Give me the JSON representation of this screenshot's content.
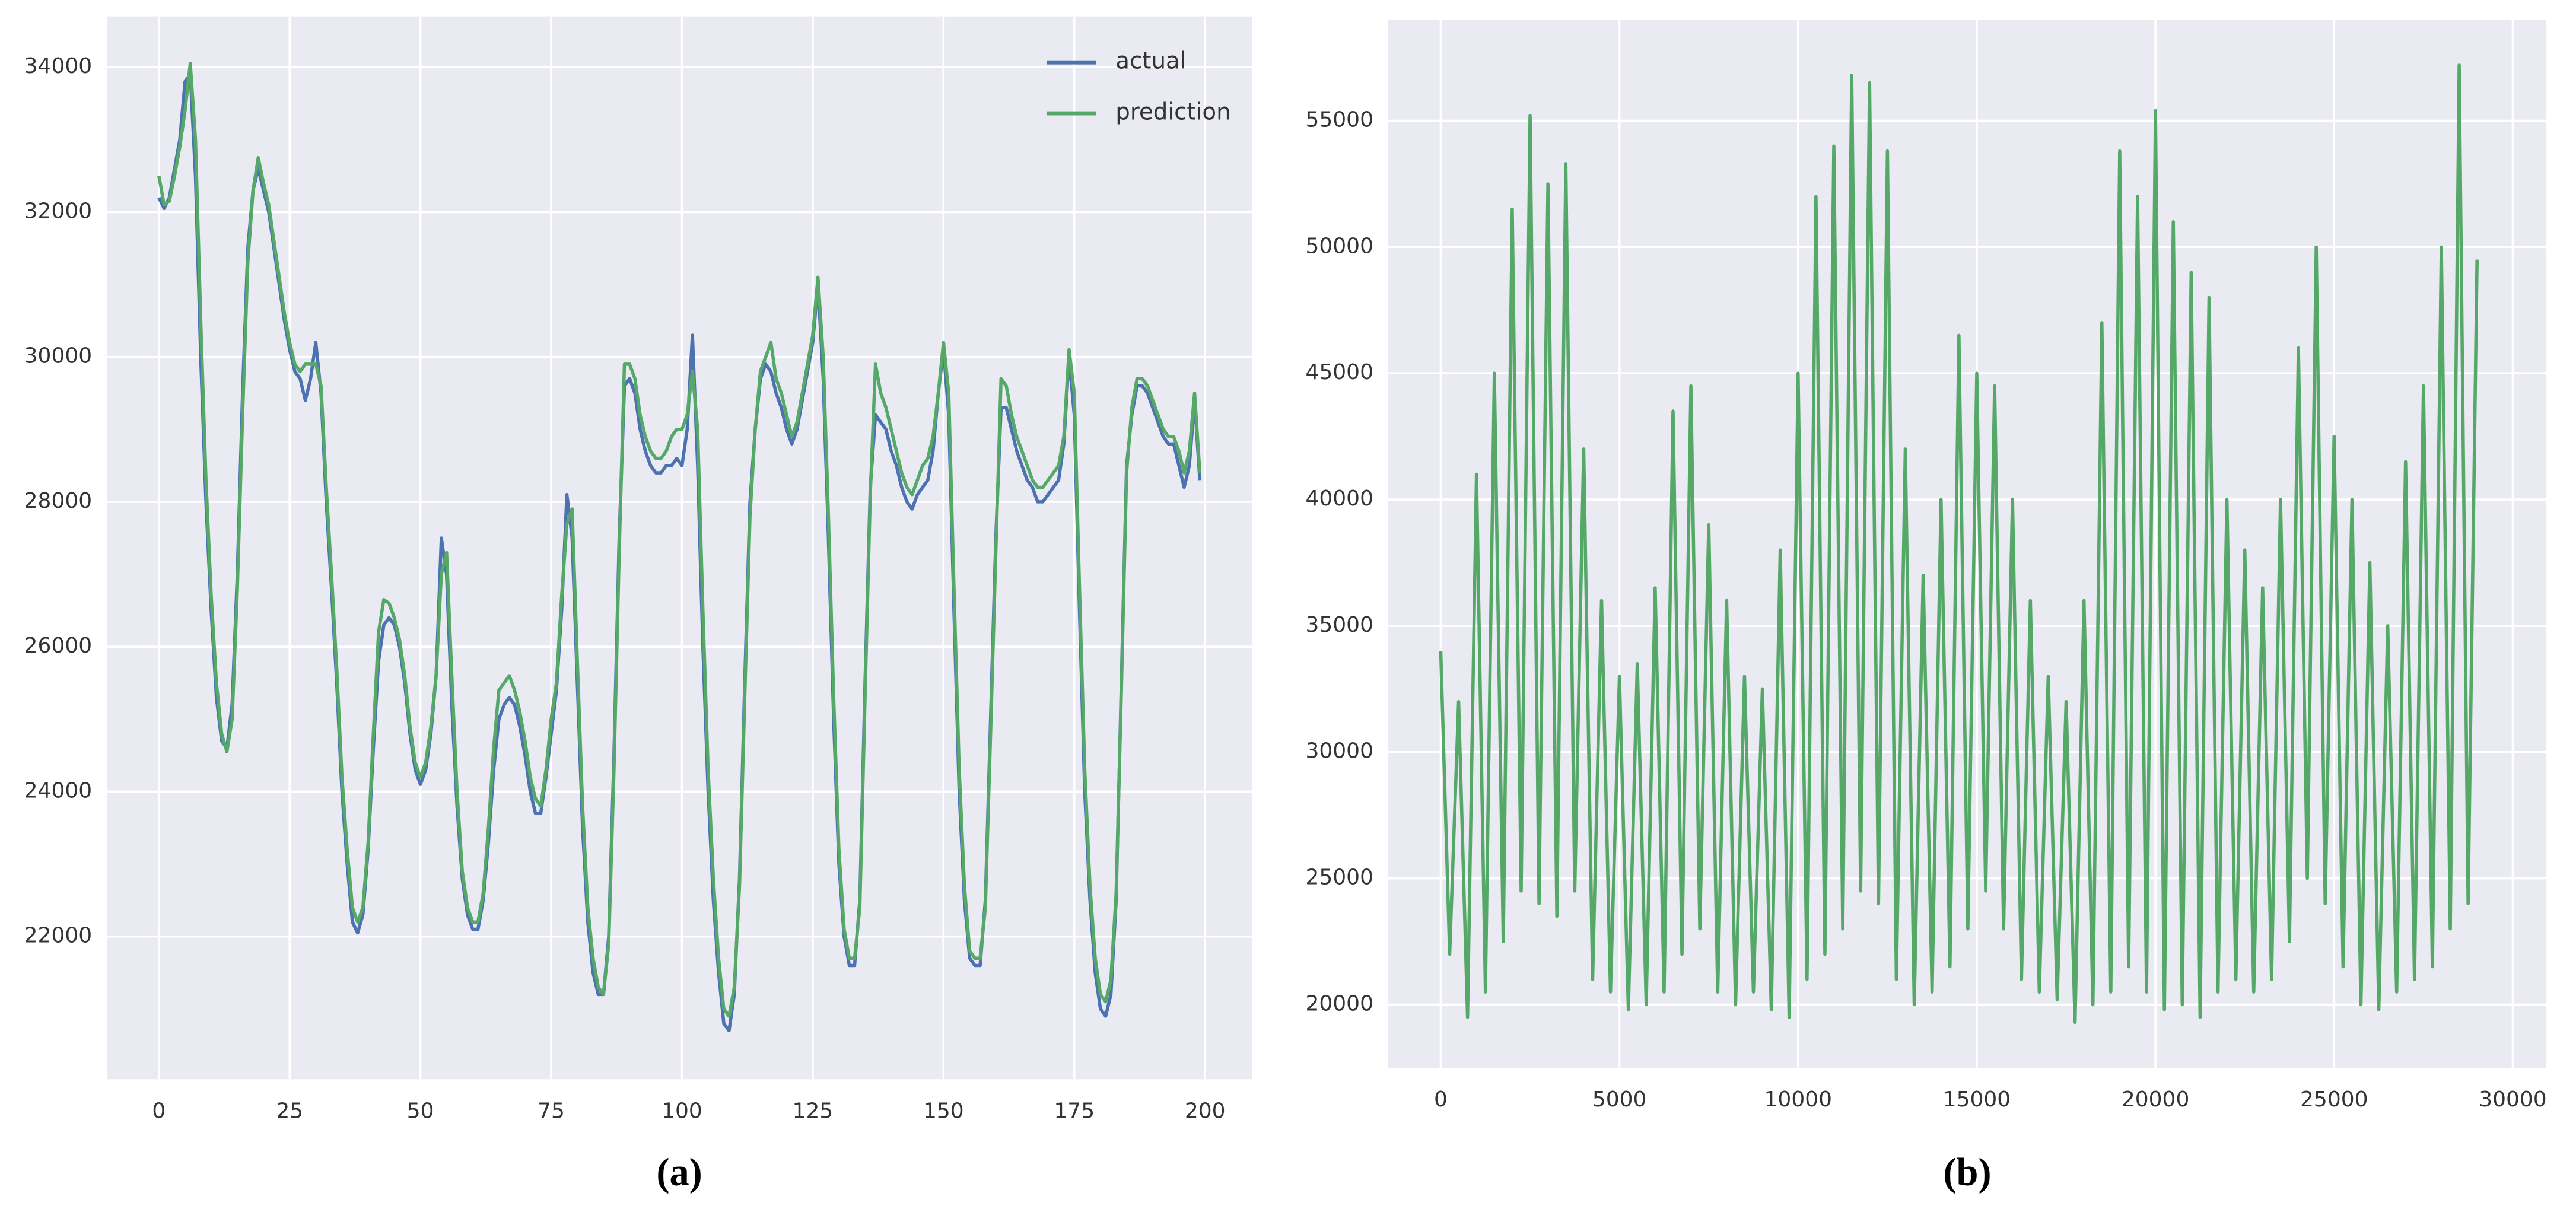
{
  "chart_data": [
    {
      "type": "line",
      "caption": "(a)",
      "legend": "upper right",
      "grid": true,
      "xlim": [
        -9.95,
        208.95
      ],
      "xticks": [
        0,
        25,
        50,
        75,
        100,
        125,
        150,
        175,
        200
      ],
      "ylim": [
        20030,
        34700
      ],
      "yticks": [
        22000,
        24000,
        26000,
        28000,
        30000,
        32000,
        34000
      ],
      "x": [
        0,
        1,
        2,
        3,
        4,
        5,
        6,
        7,
        8,
        9,
        10,
        11,
        12,
        13,
        14,
        15,
        16,
        17,
        18,
        19,
        20,
        21,
        22,
        23,
        24,
        25,
        26,
        27,
        28,
        29,
        30,
        31,
        32,
        33,
        34,
        35,
        36,
        37,
        38,
        39,
        40,
        41,
        42,
        43,
        44,
        45,
        46,
        47,
        48,
        49,
        50,
        51,
        52,
        53,
        54,
        55,
        56,
        57,
        58,
        59,
        60,
        61,
        62,
        63,
        64,
        65,
        66,
        67,
        68,
        69,
        70,
        71,
        72,
        73,
        74,
        75,
        76,
        77,
        78,
        79,
        80,
        81,
        82,
        83,
        84,
        85,
        86,
        87,
        88,
        89,
        90,
        91,
        92,
        93,
        94,
        95,
        96,
        97,
        98,
        99,
        100,
        101,
        102,
        103,
        104,
        105,
        106,
        107,
        108,
        109,
        110,
        111,
        112,
        113,
        114,
        115,
        116,
        117,
        118,
        119,
        120,
        121,
        122,
        123,
        124,
        125,
        126,
        127,
        128,
        129,
        130,
        131,
        132,
        133,
        134,
        135,
        136,
        137,
        138,
        139,
        140,
        141,
        142,
        143,
        144,
        145,
        146,
        147,
        148,
        149,
        150,
        151,
        152,
        153,
        154,
        155,
        156,
        157,
        158,
        159,
        160,
        161,
        162,
        163,
        164,
        165,
        166,
        167,
        168,
        169,
        170,
        171,
        172,
        173,
        174,
        175,
        176,
        177,
        178,
        179,
        180,
        181,
        182,
        183,
        184,
        185,
        186,
        187,
        188,
        189,
        190,
        191,
        192,
        193,
        194,
        195,
        196,
        197,
        198,
        199
      ],
      "series": [
        {
          "name": "actual",
          "color": "#4c72b0",
          "values": [
            32200,
            32050,
            32200,
            32600,
            33000,
            33800,
            33900,
            32500,
            30000,
            28000,
            26500,
            25300,
            24700,
            24600,
            25200,
            27000,
            29500,
            31500,
            32300,
            32600,
            32300,
            32000,
            31500,
            31000,
            30500,
            30100,
            29800,
            29700,
            29400,
            29700,
            30200,
            29500,
            28000,
            26800,
            25500,
            24000,
            23000,
            22200,
            22050,
            22300,
            23200,
            24600,
            25800,
            26300,
            26400,
            26300,
            26000,
            25500,
            24800,
            24300,
            24100,
            24300,
            24800,
            25600,
            27500,
            27000,
            25200,
            23800,
            22800,
            22300,
            22100,
            22100,
            22500,
            23300,
            24300,
            25000,
            25200,
            25300,
            25200,
            24900,
            24500,
            24000,
            23700,
            23700,
            24200,
            24800,
            25400,
            26500,
            28100,
            27500,
            25500,
            23500,
            22200,
            21500,
            21200,
            21200,
            22000,
            24500,
            27500,
            29600,
            29700,
            29500,
            29000,
            28700,
            28500,
            28400,
            28400,
            28500,
            28500,
            28600,
            28500,
            29000,
            30300,
            28500,
            26000,
            24000,
            22500,
            21500,
            20800,
            20700,
            21200,
            22800,
            25500,
            28000,
            29000,
            29700,
            29900,
            29800,
            29500,
            29300,
            29000,
            28800,
            29000,
            29400,
            29800,
            30200,
            31000,
            29700,
            27500,
            25000,
            23000,
            22000,
            21600,
            21600,
            22500,
            25500,
            28200,
            29200,
            29100,
            29000,
            28700,
            28500,
            28200,
            28000,
            27900,
            28100,
            28200,
            28300,
            28700,
            29500,
            30100,
            29200,
            26500,
            24000,
            22500,
            21700,
            21600,
            21600,
            22500,
            25000,
            27500,
            29300,
            29300,
            29000,
            28700,
            28500,
            28300,
            28200,
            28000,
            28000,
            28100,
            28200,
            28300,
            28800,
            30000,
            29200,
            26500,
            24000,
            22500,
            21500,
            21000,
            20900,
            21200,
            22500,
            25500,
            28500,
            29200,
            29600,
            29600,
            29500,
            29300,
            29100,
            28900,
            28800,
            28800,
            28500,
            28200,
            28500,
            29400,
            28300
          ]
        },
        {
          "name": "prediction",
          "color": "#55a868",
          "values": [
            32500,
            32100,
            32150,
            32500,
            32900,
            33400,
            34050,
            33000,
            30500,
            28300,
            26700,
            25500,
            24800,
            24550,
            25000,
            26800,
            29200,
            31300,
            32300,
            32750,
            32400,
            32100,
            31600,
            31100,
            30600,
            30200,
            29900,
            29800,
            29900,
            29900,
            29900,
            29600,
            28200,
            27000,
            25700,
            24200,
            23200,
            22400,
            22200,
            22400,
            23300,
            24800,
            26200,
            26650,
            26600,
            26400,
            26100,
            25600,
            24900,
            24400,
            24200,
            24400,
            24900,
            25600,
            27000,
            27300,
            25600,
            24000,
            22900,
            22400,
            22200,
            22200,
            22600,
            23500,
            24600,
            25400,
            25500,
            25600,
            25400,
            25100,
            24700,
            24200,
            23900,
            23800,
            24300,
            25000,
            25500,
            26700,
            27700,
            27900,
            25800,
            23800,
            22400,
            21700,
            21300,
            21200,
            21900,
            24300,
            27300,
            29900,
            29900,
            29700,
            29200,
            28900,
            28700,
            28600,
            28600,
            28700,
            28900,
            29000,
            29000,
            29200,
            29800,
            29000,
            26500,
            24300,
            22800,
            21700,
            21000,
            20900,
            21300,
            22700,
            25300,
            27800,
            29000,
            29800,
            30000,
            30200,
            29700,
            29500,
            29200,
            28900,
            29100,
            29500,
            29900,
            30300,
            31100,
            30000,
            27800,
            25300,
            23200,
            22100,
            21700,
            21700,
            22400,
            25300,
            28100,
            29900,
            29500,
            29300,
            29000,
            28700,
            28400,
            28200,
            28100,
            28300,
            28500,
            28600,
            28900,
            29500,
            30200,
            29500,
            26800,
            24300,
            22700,
            21800,
            21700,
            21700,
            22400,
            24800,
            27300,
            29700,
            29600,
            29200,
            28900,
            28700,
            28500,
            28300,
            28200,
            28200,
            28300,
            28400,
            28500,
            28900,
            30100,
            29500,
            26800,
            24300,
            22700,
            21700,
            21200,
            21100,
            21400,
            22600,
            25400,
            28400,
            29300,
            29700,
            29700,
            29600,
            29400,
            29200,
            29000,
            28900,
            28900,
            28700,
            28400,
            28700,
            29500,
            28400
          ]
        }
      ]
    },
    {
      "type": "line",
      "caption": "(b)",
      "grid": true,
      "xlim": [
        -1470,
        30940
      ],
      "xticks": [
        0,
        5000,
        10000,
        15000,
        20000,
        25000,
        30000
      ],
      "ylim": [
        17500,
        59000
      ],
      "yticks": [
        20000,
        25000,
        30000,
        35000,
        40000,
        45000,
        50000,
        55000
      ],
      "x": [
        0,
        250,
        500,
        750,
        1000,
        1250,
        1500,
        1750,
        2000,
        2250,
        2500,
        2750,
        3000,
        3250,
        3500,
        3750,
        4000,
        4250,
        4500,
        4750,
        5000,
        5250,
        5500,
        5750,
        6000,
        6250,
        6500,
        6750,
        7000,
        7250,
        7500,
        7750,
        8000,
        8250,
        8500,
        8750,
        9000,
        9250,
        9500,
        9750,
        10000,
        10250,
        10500,
        10750,
        11000,
        11250,
        11500,
        11750,
        12000,
        12250,
        12500,
        12750,
        13000,
        13250,
        13500,
        13750,
        14000,
        14250,
        14500,
        14750,
        15000,
        15250,
        15500,
        15750,
        16000,
        16250,
        16500,
        16750,
        17000,
        17250,
        17500,
        17750,
        18000,
        18250,
        18500,
        18750,
        19000,
        19250,
        19500,
        19750,
        20000,
        20250,
        20500,
        20750,
        21000,
        21250,
        21500,
        21750,
        22000,
        22250,
        22500,
        22750,
        23000,
        23250,
        23500,
        23750,
        24000,
        24250,
        24500,
        24750,
        25000,
        25250,
        25500,
        25750,
        26000,
        26250,
        26500,
        26750,
        27000,
        27250,
        27500,
        27750,
        28000,
        28250,
        28500,
        28750,
        29000
      ],
      "series": [
        {
          "color": "#55a868",
          "values": [
            34000,
            22000,
            32000,
            19500,
            41000,
            20500,
            45000,
            22500,
            51500,
            24500,
            55200,
            24000,
            52500,
            23500,
            53300,
            24500,
            42000,
            21000,
            36000,
            20500,
            33000,
            19800,
            33500,
            20000,
            36500,
            20500,
            43500,
            22000,
            44500,
            23000,
            39000,
            20500,
            36000,
            20000,
            33000,
            20500,
            32500,
            19800,
            38000,
            19500,
            45000,
            21000,
            52000,
            22000,
            54000,
            23000,
            56800,
            24500,
            56500,
            24000,
            53800,
            21000,
            42000,
            20000,
            37000,
            20500,
            40000,
            21500,
            46500,
            23000,
            45000,
            24500,
            44500,
            23000,
            40000,
            21000,
            36000,
            20500,
            33000,
            20200,
            32000,
            19300,
            36000,
            20000,
            47000,
            20500,
            53800,
            21500,
            52000,
            20500,
            55400,
            19800,
            51000,
            20000,
            49000,
            19500,
            48000,
            20500,
            40000,
            21000,
            38000,
            20500,
            36500,
            21000,
            40000,
            22500,
            46000,
            25000,
            50000,
            24000,
            42500,
            21500,
            40000,
            20000,
            37500,
            19800,
            35000,
            20500,
            41500,
            21000,
            44500,
            21500,
            50000,
            23000,
            57200,
            24000,
            49500
          ]
        }
      ]
    }
  ]
}
